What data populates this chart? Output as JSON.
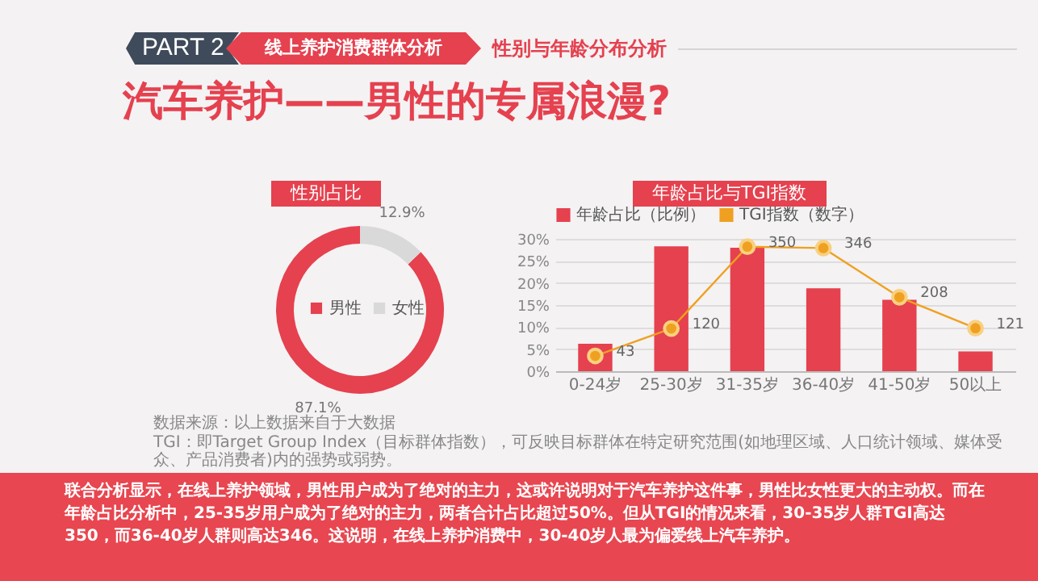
{
  "chart_data": [
    {
      "type": "other",
      "title": "汽车养护——男性的专属浪漫?",
      "annotations": [
        "PART 2",
        "线上养护消费群体分析",
        "性别与年龄分布分析"
      ]
    },
    {
      "type": "donut",
      "title": "性别占比",
      "categories": [
        "男性",
        "女性"
      ],
      "values": [
        87.1,
        12.9
      ],
      "colors": [
        "#e5414f",
        "#d9d9d9"
      ],
      "value_labels": [
        "87.1%",
        "12.9%"
      ],
      "legend": "center"
    },
    {
      "type": "bar",
      "title": "年龄占比与TGI指数",
      "categories": [
        "0-24岁",
        "25-30岁",
        "31-35岁",
        "36-40岁",
        "41-50岁",
        "50以上"
      ],
      "series": [
        {
          "name": "年龄占比（比例）",
          "color": "#e5414f",
          "values": [
            6.2,
            28.3,
            28.0,
            18.8,
            16.2,
            4.5
          ]
        },
        {
          "name": "TGI指数（数字）",
          "type": "line",
          "axis": "y2",
          "color": "#f0a020",
          "values": [
            43,
            120,
            350,
            346,
            208,
            121
          ],
          "value_labels": [
            "43",
            "120",
            "350",
            "346",
            "208",
            "121"
          ]
        }
      ],
      "ylim": [
        0,
        30
      ],
      "yticks": [
        {
          "value": 0,
          "label": "0%"
        },
        {
          "value": 5,
          "label": "5%"
        },
        {
          "value": 10,
          "label": "10%"
        },
        {
          "value": 15,
          "label": "15%"
        },
        {
          "value": 20,
          "label": "20%"
        },
        {
          "value": 25,
          "label": "25%"
        },
        {
          "value": 30,
          "label": "30%"
        }
      ],
      "y2lim": [
        0,
        372
      ],
      "grid": "y",
      "legend": "top",
      "marker": "circle"
    },
    {
      "type": "other",
      "annotations": [
        "数据来源：以上数据来自于大数据",
        "TGI：即Target Group Index（目标群体指数），可反映目标群体在特定研究范围(如地理区域、人口统计领域、媒体受众、产品消费者)内的强势或弱势。",
        "联合分析显示，在线上养护领域，男性用户成为了绝对的主力，这或许说明对于汽车养护这件事，男性比女性更大的主动权。而在年龄占比分析中，25-35岁用户成为了绝对的主力，两者合计占比超过50%。但从TGI的情况来看，30-35岁人群TGI高达350，而36-40岁人群则高达346。这说明，在线上养护消费中，30-40岁人最为偏爱线上汽车养护。"
      ]
    }
  ]
}
